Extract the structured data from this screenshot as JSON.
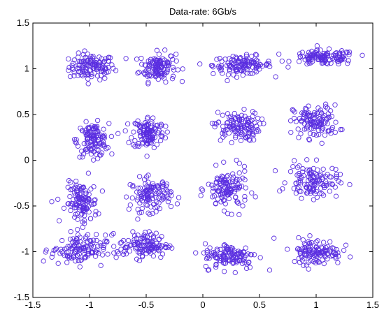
{
  "chart_data": {
    "type": "scatter",
    "title": "Data-rate: 6Gb/s",
    "xlabel": "",
    "ylabel": "",
    "xlim": [
      -1.5,
      1.5
    ],
    "ylim": [
      -1.5,
      1.5
    ],
    "xticks": [
      -1.5,
      -1,
      -0.5,
      0,
      0.5,
      1,
      1.5
    ],
    "xtick_labels": [
      "-1.5",
      "-1",
      "-0.5",
      "0",
      "0.5",
      "1",
      "1.5"
    ],
    "yticks": [
      -1.5,
      -1,
      -0.5,
      0,
      0.5,
      1,
      1.5
    ],
    "ytick_labels": [
      "-1.5",
      "-1",
      "-0.5",
      "0",
      "0.5",
      "1",
      "1.5"
    ],
    "grid": false,
    "marker": "circle-open",
    "marker_color": "#5a2ee0",
    "points_per_cluster": 120,
    "clusters": [
      {
        "cx": -0.98,
        "cy": 1.02,
        "sx": 0.1,
        "sy": 0.07
      },
      {
        "cx": -0.4,
        "cy": 1.02,
        "sx": 0.08,
        "sy": 0.08
      },
      {
        "cx": 0.35,
        "cy": 1.04,
        "sx": 0.13,
        "sy": 0.05
      },
      {
        "cx": 1.07,
        "cy": 1.12,
        "sx": 0.14,
        "sy": 0.04
      },
      {
        "cx": -0.97,
        "cy": 0.22,
        "sx": 0.07,
        "sy": 0.09
      },
      {
        "cx": -0.48,
        "cy": 0.3,
        "sx": 0.07,
        "sy": 0.09
      },
      {
        "cx": 0.3,
        "cy": 0.37,
        "sx": 0.1,
        "sy": 0.08
      },
      {
        "cx": 1.0,
        "cy": 0.42,
        "sx": 0.1,
        "sy": 0.09
      },
      {
        "cx": -1.07,
        "cy": -0.47,
        "sx": 0.07,
        "sy": 0.11
      },
      {
        "cx": -0.46,
        "cy": -0.38,
        "sx": 0.09,
        "sy": 0.09
      },
      {
        "cx": 0.22,
        "cy": -0.32,
        "sx": 0.09,
        "sy": 0.11
      },
      {
        "cx": 0.97,
        "cy": -0.23,
        "sx": 0.11,
        "sy": 0.09
      },
      {
        "cx": -1.1,
        "cy": -0.98,
        "sx": 0.12,
        "sy": 0.08
      },
      {
        "cx": -0.52,
        "cy": -0.93,
        "sx": 0.11,
        "sy": 0.07
      },
      {
        "cx": 0.25,
        "cy": -1.05,
        "sx": 0.12,
        "sy": 0.07
      },
      {
        "cx": 1.0,
        "cy": -1.0,
        "sx": 0.11,
        "sy": 0.07
      }
    ]
  }
}
